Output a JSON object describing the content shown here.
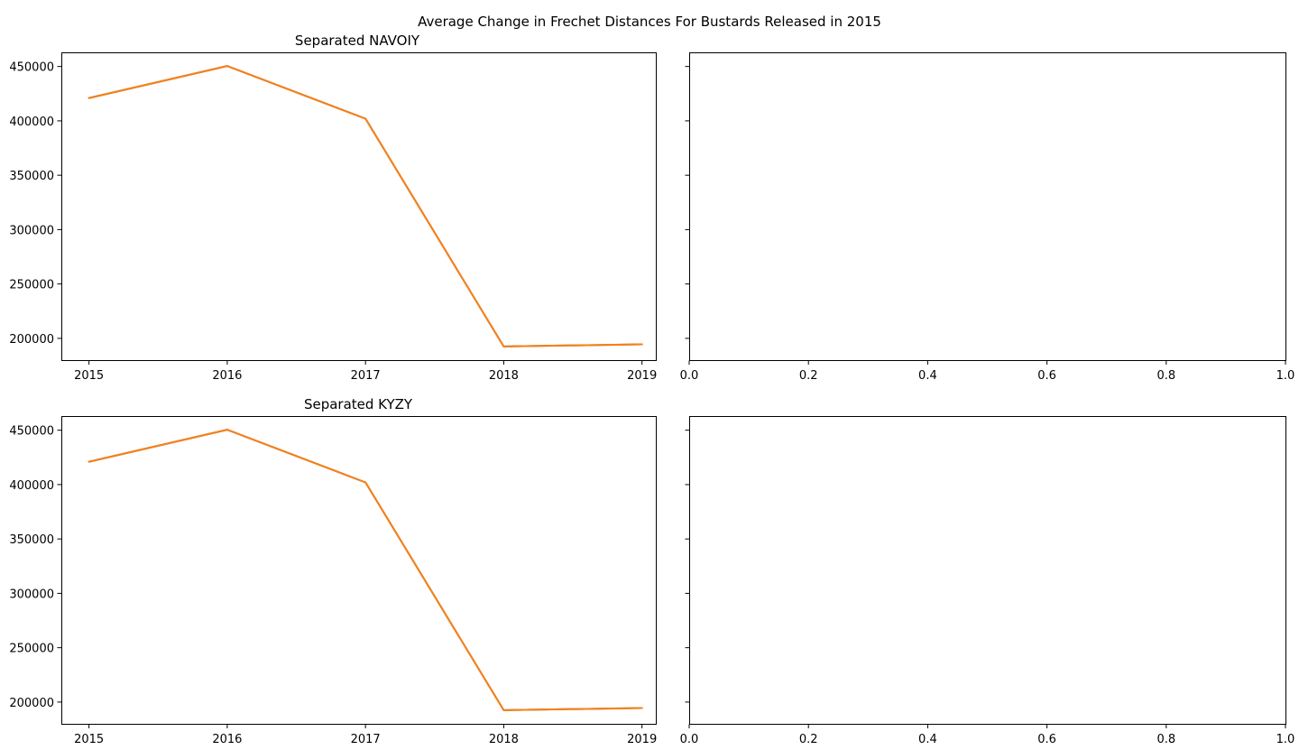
{
  "suptitle": "Average Change in Frechet Distances For Bustards Released in 2015",
  "chart_data": [
    {
      "type": "line",
      "title": "Separated NAVOIY",
      "xlabel": "",
      "ylabel": "",
      "x": [
        2015,
        2016,
        2017,
        2018,
        2019
      ],
      "xticks": [
        "2015",
        "2016",
        "2017",
        "2018",
        "2019"
      ],
      "yticks": [
        "200000",
        "250000",
        "300000",
        "350000",
        "400000",
        "450000"
      ],
      "series": [
        {
          "values": [
            421000,
            450500,
            402000,
            192500,
            194500
          ],
          "color": "#1f77b4"
        },
        {
          "values": [
            421000,
            450500,
            402000,
            192500,
            194500
          ],
          "color": "#ff7f0e"
        }
      ],
      "grid": false
    },
    {
      "type": "line",
      "title": "",
      "xlabel": "",
      "ylabel": "",
      "x": [],
      "xticks": [
        "0.0",
        "0.2",
        "0.4",
        "0.6",
        "0.8",
        "1.0"
      ],
      "xlim": [
        0,
        1
      ],
      "series": [],
      "grid": false
    },
    {
      "type": "line",
      "title": "Separated KYZY",
      "xlabel": "",
      "ylabel": "",
      "x": [
        2015,
        2016,
        2017,
        2018,
        2019
      ],
      "xticks": [
        "2015",
        "2016",
        "2017",
        "2018",
        "2019"
      ],
      "yticks": [
        "200000",
        "250000",
        "300000",
        "350000",
        "400000",
        "450000"
      ],
      "series": [
        {
          "values": [
            421000,
            450500,
            402000,
            192500,
            194500
          ],
          "color": "#1f77b4"
        },
        {
          "values": [
            421000,
            450500,
            402000,
            192500,
            194500
          ],
          "color": "#ff7f0e"
        }
      ],
      "grid": false
    },
    {
      "type": "line",
      "title": "",
      "xlabel": "",
      "ylabel": "",
      "x": [],
      "xticks": [
        "0.0",
        "0.2",
        "0.4",
        "0.6",
        "0.8",
        "1.0"
      ],
      "xlim": [
        0,
        1
      ],
      "series": [],
      "grid": false
    }
  ]
}
